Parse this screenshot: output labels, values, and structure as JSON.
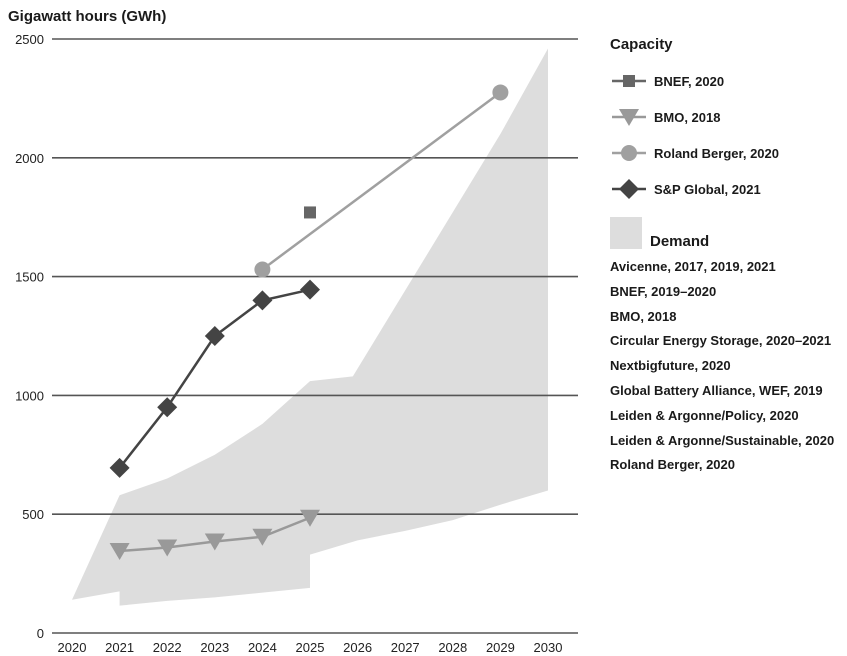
{
  "chart_data": {
    "type": "line",
    "ylabel": "Gigawatt hours (GWh)",
    "xlim": [
      2020,
      2030
    ],
    "ylim": [
      0,
      2500
    ],
    "x_ticks": [
      "2020",
      "2021",
      "2022",
      "2023",
      "2024",
      "2025",
      "2026",
      "2027",
      "2028",
      "2029",
      "2030"
    ],
    "y_ticks": [
      "0",
      "500",
      "1000",
      "1500",
      "2000",
      "2500"
    ],
    "grid": "horizontal",
    "capacity_title": "Capacity",
    "series": [
      {
        "name": "BNEF, 2020",
        "marker": "square",
        "color": "#666666",
        "line": false,
        "points": [
          {
            "x": 2025,
            "y": 1770
          }
        ]
      },
      {
        "name": "BMO, 2018",
        "marker": "triangle-down",
        "color": "#999999",
        "line": true,
        "points": [
          {
            "x": 2021,
            "y": 345
          },
          {
            "x": 2022,
            "y": 360
          },
          {
            "x": 2023,
            "y": 385
          },
          {
            "x": 2024,
            "y": 405
          },
          {
            "x": 2025,
            "y": 485
          }
        ]
      },
      {
        "name": "Roland Berger, 2020",
        "marker": "circle",
        "color": "#a0a0a0",
        "line": true,
        "points": [
          {
            "x": 2024,
            "y": 1530
          },
          {
            "x": 2029,
            "y": 2275
          }
        ]
      },
      {
        "name": "S&P Global, 2021",
        "marker": "diamond",
        "color": "#444444",
        "line": true,
        "points": [
          {
            "x": 2021,
            "y": 695
          },
          {
            "x": 2022,
            "y": 950
          },
          {
            "x": 2023,
            "y": 1250
          },
          {
            "x": 2024,
            "y": 1400
          },
          {
            "x": 2025,
            "y": 1445
          }
        ]
      }
    ],
    "demand": {
      "title": "Demand",
      "color": "#dddddd",
      "upper": [
        {
          "x": 2020,
          "y": 140
        },
        {
          "x": 2021,
          "y": 580
        },
        {
          "x": 2022,
          "y": 650
        },
        {
          "x": 2023,
          "y": 750
        },
        {
          "x": 2024,
          "y": 880
        },
        {
          "x": 2025,
          "y": 1060
        },
        {
          "x": 2025.9,
          "y": 1080
        },
        {
          "x": 2029,
          "y": 2100
        },
        {
          "x": 2030,
          "y": 2460
        }
      ],
      "lower": [
        {
          "x": 2030,
          "y": 600
        },
        {
          "x": 2029,
          "y": 540
        },
        {
          "x": 2028,
          "y": 475
        },
        {
          "x": 2027,
          "y": 430
        },
        {
          "x": 2026,
          "y": 390
        },
        {
          "x": 2025,
          "y": 330
        },
        {
          "x": 2025,
          "y": 190
        },
        {
          "x": 2024,
          "y": 170
        },
        {
          "x": 2023,
          "y": 150
        },
        {
          "x": 2022,
          "y": 135
        },
        {
          "x": 2021,
          "y": 115
        },
        {
          "x": 2021,
          "y": 175
        }
      ],
      "sources": [
        "Avicenne, 2017, 2019, 2021",
        "BNEF, 2019–2020",
        "BMO, 2018",
        "Circular Energy Storage, 2020–2021",
        "Nextbigfuture, 2020",
        "Global Battery Alliance, WEF, 2019",
        "Leiden & Argonne/Policy, 2020",
        "Leiden & Argonne/Sustainable, 2020",
        "Roland Berger, 2020"
      ]
    }
  }
}
